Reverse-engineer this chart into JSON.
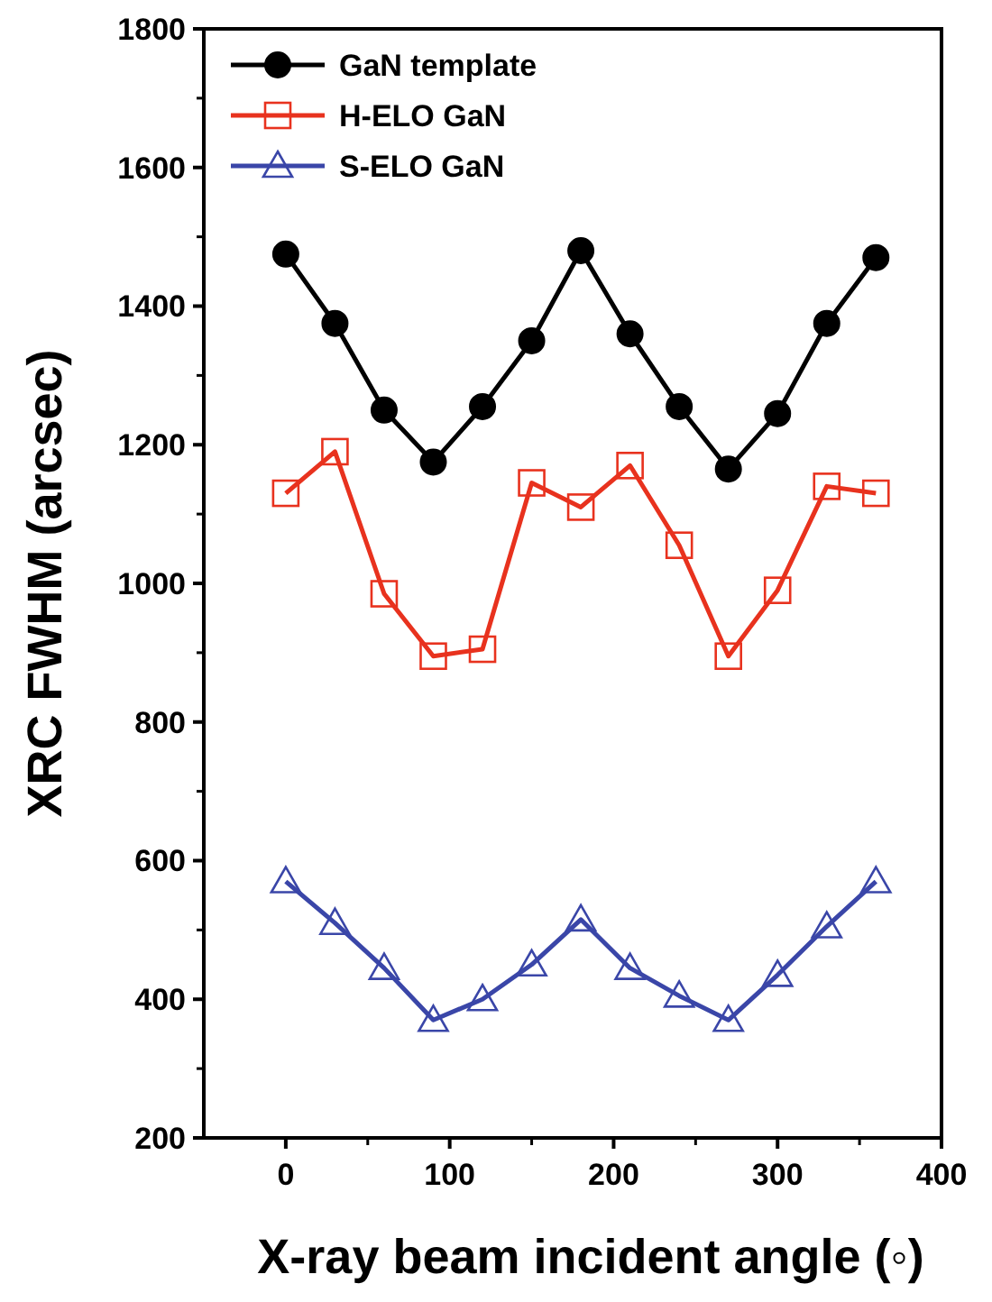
{
  "chart_data": {
    "type": "line",
    "xlabel": "X-ray beam incident angle (◦)",
    "ylabel": "XRC FWHM (arcsec)",
    "x": [
      0,
      30,
      60,
      90,
      120,
      150,
      180,
      210,
      240,
      270,
      300,
      330,
      360
    ],
    "xlim": [
      -50,
      400
    ],
    "xticks": [
      0,
      100,
      200,
      300,
      400
    ],
    "ylim": [
      200,
      1800
    ],
    "yticks": [
      200,
      400,
      600,
      800,
      1000,
      1200,
      1400,
      1600,
      1800
    ],
    "legend": "top left",
    "grid": false,
    "line_style": "solid",
    "series": [
      {
        "name": "GaN template",
        "color": "#000000",
        "marker": "circle",
        "values": [
          1475,
          1375,
          1250,
          1175,
          1255,
          1350,
          1480,
          1360,
          1255,
          1165,
          1245,
          1375,
          1470
        ]
      },
      {
        "name": "H-ELO GaN",
        "color": "#e8321e",
        "marker": "square",
        "values": [
          1130,
          1190,
          985,
          895,
          905,
          1145,
          1110,
          1170,
          1055,
          895,
          990,
          1140,
          1130
        ]
      },
      {
        "name": "S-ELO GaN",
        "color": "#3a46a8",
        "marker": "triangle",
        "values": [
          570,
          510,
          445,
          370,
          400,
          450,
          515,
          445,
          405,
          370,
          435,
          505,
          570
        ]
      }
    ]
  }
}
